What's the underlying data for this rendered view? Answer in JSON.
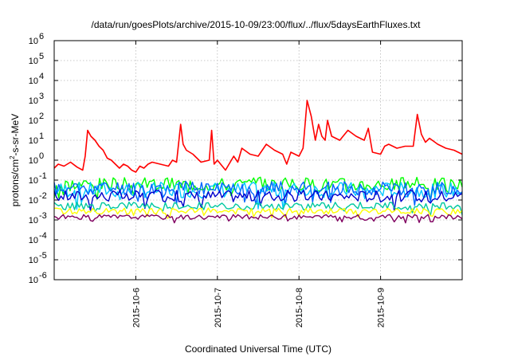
{
  "chart_data": {
    "type": "line",
    "title": "/data/run/goesPlots/archive/2015-10-09/23:00/flux/../flux/5daysEarthFluxes.txt",
    "xlabel": "Coordinated Universal Time (UTC)",
    "ylabel_main": "protons/cm",
    "ylabel_sup": "2",
    "ylabel_rest": "-s-sr-MeV",
    "y_scale": "log",
    "ylim_exp": [
      -6,
      6
    ],
    "xlim": [
      0,
      5
    ],
    "grid": true,
    "x_ticks": [
      {
        "x": 1,
        "label": "2015-10-6"
      },
      {
        "x": 2,
        "label": "2015-10-7"
      },
      {
        "x": 3,
        "label": "2015-10-8"
      },
      {
        "x": 4,
        "label": "2015-10-9"
      }
    ],
    "y_ticks": [
      {
        "base": "10",
        "exp": "-6",
        "value_exp": -6
      },
      {
        "base": "10",
        "exp": "-5",
        "value_exp": -5
      },
      {
        "base": "10",
        "exp": "-4",
        "value_exp": -4
      },
      {
        "base": "10",
        "exp": "-3",
        "value_exp": -3
      },
      {
        "base": "10",
        "exp": "-2",
        "value_exp": -2
      },
      {
        "base": "10",
        "exp": "-1",
        "value_exp": -1
      },
      {
        "base": "10",
        "exp": "0",
        "value_exp": 0
      },
      {
        "base": "10",
        "exp": "1",
        "value_exp": 1
      },
      {
        "base": "10",
        "exp": "2",
        "value_exp": 2
      },
      {
        "base": "10",
        "exp": "3",
        "value_exp": 3
      },
      {
        "base": "10",
        "exp": "4",
        "value_exp": 4
      },
      {
        "base": "10",
        "exp": "5",
        "value_exp": 5
      },
      {
        "base": "10",
        "exp": "6",
        "value_exp": 6
      }
    ],
    "series": [
      {
        "color": "#ff0000",
        "x": [
          0,
          0.05,
          0.12,
          0.2,
          0.28,
          0.35,
          0.38,
          0.41,
          0.45,
          0.5,
          0.55,
          0.6,
          0.65,
          0.7,
          0.75,
          0.8,
          0.85,
          0.9,
          0.95,
          1.0,
          1.05,
          1.1,
          1.15,
          1.2,
          1.3,
          1.4,
          1.45,
          1.5,
          1.55,
          1.58,
          1.62,
          1.7,
          1.8,
          1.9,
          1.93,
          1.96,
          2.0,
          2.1,
          2.2,
          2.25,
          2.3,
          2.4,
          2.5,
          2.6,
          2.7,
          2.8,
          2.85,
          2.9,
          3.0,
          3.05,
          3.1,
          3.15,
          3.2,
          3.24,
          3.28,
          3.32,
          3.35,
          3.4,
          3.5,
          3.6,
          3.7,
          3.8,
          3.85,
          3.9,
          4.0,
          4.05,
          4.1,
          4.2,
          4.3,
          4.4,
          4.45,
          4.5,
          4.55,
          4.6,
          4.7,
          4.8,
          4.9,
          5.0
        ],
        "logy": [
          -0.4,
          -0.2,
          -0.3,
          -0.1,
          -0.35,
          -0.5,
          0.2,
          1.5,
          1.2,
          1.0,
          0.7,
          0.5,
          0.1,
          0.0,
          -0.2,
          -0.4,
          -0.2,
          -0.3,
          -0.5,
          -0.6,
          -0.3,
          -0.4,
          -0.2,
          -0.1,
          -0.2,
          -0.3,
          0.0,
          -0.1,
          1.8,
          0.8,
          0.5,
          0.3,
          -0.1,
          0.0,
          1.5,
          -0.2,
          0.0,
          -0.5,
          0.2,
          -0.1,
          0.6,
          0.3,
          0.2,
          0.8,
          0.5,
          0.3,
          -0.2,
          0.4,
          0.2,
          0.6,
          3.0,
          2.2,
          1.0,
          1.8,
          1.2,
          1.0,
          2.0,
          1.2,
          1.0,
          1.5,
          1.2,
          1.0,
          1.6,
          0.4,
          0.3,
          0.7,
          0.8,
          0.6,
          0.7,
          0.7,
          2.3,
          1.3,
          0.9,
          1.1,
          0.8,
          0.6,
          0.5,
          0.3
        ]
      },
      {
        "color": "#00ff00",
        "base": -1.2,
        "amp": 0.35,
        "seed": 3
      },
      {
        "color": "#00c8ff",
        "base": -1.5,
        "amp": 0.4,
        "seed": 7
      },
      {
        "color": "#0066ff",
        "base": -1.4,
        "amp": 0.35,
        "seed": 11
      },
      {
        "color": "#0000cc",
        "base": -1.8,
        "amp": 0.3,
        "seed": 17
      },
      {
        "color": "#00c8a0",
        "base": -2.3,
        "amp": 0.2,
        "seed": 23
      },
      {
        "color": "#ffff00",
        "base": -2.55,
        "amp": 0.15,
        "seed": 29
      },
      {
        "color": "#800060",
        "base": -2.85,
        "amp": 0.12,
        "seed": 31
      }
    ]
  }
}
